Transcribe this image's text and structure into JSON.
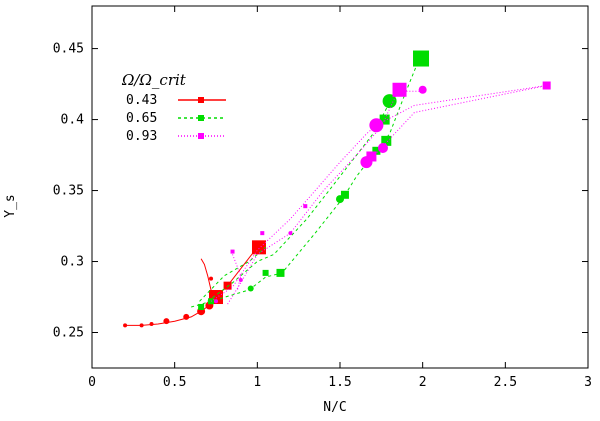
{
  "chart_data": {
    "type": "scatter",
    "xlabel": "N/C",
    "ylabel": "Y_s",
    "xlim": [
      0,
      3
    ],
    "ylim": [
      0.225,
      0.48
    ],
    "x_ticks": [
      {
        "v": 0,
        "label": "0"
      },
      {
        "v": 0.5,
        "label": "0.5"
      },
      {
        "v": 1,
        "label": "1"
      },
      {
        "v": 1.5,
        "label": "1.5"
      },
      {
        "v": 2,
        "label": "2"
      },
      {
        "v": 2.5,
        "label": "2.5"
      },
      {
        "v": 3,
        "label": "3"
      }
    ],
    "y_ticks": [
      {
        "v": 0.25,
        "label": "0.25"
      },
      {
        "v": 0.3,
        "label": "0.3"
      },
      {
        "v": 0.35,
        "label": "0.35"
      },
      {
        "v": 0.4,
        "label": "0.4"
      },
      {
        "v": 0.45,
        "label": "0.45"
      }
    ],
    "grid": false,
    "legend_title": "Ω/Ω_crit",
    "legend_position": "top-left",
    "series": [
      {
        "name": "0.43",
        "color": "#ff0000",
        "dash": "solid",
        "tracks": [
          [
            [
              0.2,
              0.255
            ],
            [
              0.3,
              0.255
            ],
            [
              0.4,
              0.256
            ],
            [
              0.5,
              0.258
            ],
            [
              0.6,
              0.261
            ],
            [
              0.66,
              0.265
            ],
            [
              0.72,
              0.27
            ],
            [
              0.75,
              0.275
            ]
          ],
          [
            [
              0.75,
              0.275
            ],
            [
              0.72,
              0.28
            ],
            [
              0.7,
              0.29
            ],
            [
              0.68,
              0.298
            ],
            [
              0.66,
              0.302
            ]
          ],
          [
            [
              0.75,
              0.275
            ],
            [
              0.82,
              0.283
            ],
            [
              1.0,
              0.31
            ]
          ]
        ],
        "points": [
          {
            "x": 0.2,
            "y": 0.255,
            "s": 2,
            "shape": "circle"
          },
          {
            "x": 0.3,
            "y": 0.255,
            "s": 2,
            "shape": "circle"
          },
          {
            "x": 0.36,
            "y": 0.256,
            "s": 2,
            "shape": "circle"
          },
          {
            "x": 0.45,
            "y": 0.258,
            "s": 3,
            "shape": "circle"
          },
          {
            "x": 0.57,
            "y": 0.261,
            "s": 3,
            "shape": "circle"
          },
          {
            "x": 0.66,
            "y": 0.265,
            "s": 4,
            "shape": "circle"
          },
          {
            "x": 0.71,
            "y": 0.269,
            "s": 4,
            "shape": "circle"
          },
          {
            "x": 0.75,
            "y": 0.275,
            "s": 7,
            "shape": "square"
          },
          {
            "x": 0.72,
            "y": 0.288,
            "s": 2,
            "shape": "circle"
          },
          {
            "x": 0.82,
            "y": 0.283,
            "s": 4,
            "shape": "square"
          },
          {
            "x": 1.01,
            "y": 0.31,
            "s": 7,
            "shape": "square"
          }
        ]
      },
      {
        "name": "0.65",
        "color": "#00dd00",
        "dash": "3,3",
        "tracks": [
          [
            [
              0.6,
              0.268
            ],
            [
              0.72,
              0.272
            ],
            [
              0.95,
              0.28
            ],
            [
              1.05,
              0.289
            ],
            [
              1.15,
              0.292
            ],
            [
              1.35,
              0.32
            ],
            [
              1.52,
              0.345
            ],
            [
              1.6,
              0.36
            ],
            [
              1.7,
              0.375
            ],
            [
              1.8,
              0.39
            ],
            [
              1.9,
              0.42
            ],
            [
              1.98,
              0.443
            ]
          ],
          [
            [
              0.7,
              0.272
            ],
            [
              0.85,
              0.285
            ],
            [
              1.0,
              0.3
            ],
            [
              1.1,
              0.305
            ],
            [
              1.3,
              0.33
            ],
            [
              1.5,
              0.36
            ],
            [
              1.7,
              0.39
            ],
            [
              1.8,
              0.412
            ]
          ],
          [
            [
              0.65,
              0.272
            ],
            [
              0.8,
              0.29
            ],
            [
              0.95,
              0.3
            ],
            [
              1.05,
              0.31
            ]
          ]
        ],
        "points": [
          {
            "x": 0.66,
            "y": 0.268,
            "s": 3,
            "shape": "square"
          },
          {
            "x": 0.72,
            "y": 0.272,
            "s": 3,
            "shape": "square"
          },
          {
            "x": 0.96,
            "y": 0.281,
            "s": 3,
            "shape": "circle"
          },
          {
            "x": 1.05,
            "y": 0.292,
            "s": 3,
            "shape": "square"
          },
          {
            "x": 1.14,
            "y": 0.292,
            "s": 4,
            "shape": "square"
          },
          {
            "x": 1.5,
            "y": 0.344,
            "s": 4,
            "shape": "circle"
          },
          {
            "x": 1.53,
            "y": 0.347,
            "s": 4,
            "shape": "square"
          },
          {
            "x": 1.72,
            "y": 0.378,
            "s": 4,
            "shape": "square"
          },
          {
            "x": 1.78,
            "y": 0.385,
            "s": 5,
            "shape": "square"
          },
          {
            "x": 1.77,
            "y": 0.4,
            "s": 5,
            "shape": "square"
          },
          {
            "x": 1.8,
            "y": 0.413,
            "s": 7,
            "shape": "circle"
          },
          {
            "x": 1.99,
            "y": 0.443,
            "s": 8,
            "shape": "square"
          }
        ]
      },
      {
        "name": "0.93",
        "color": "#ff00ff",
        "dash": "1,2",
        "tracks": [
          [
            [
              0.72,
              0.272
            ],
            [
              0.85,
              0.282
            ],
            [
              1.0,
              0.308
            ],
            [
              1.2,
              0.33
            ],
            [
              1.5,
              0.37
            ],
            [
              1.66,
              0.39
            ],
            [
              1.72,
              0.396
            ],
            [
              1.95,
              0.41
            ],
            [
              2.75,
              0.424
            ]
          ],
          [
            [
              2.75,
              0.424
            ],
            [
              1.95,
              0.405
            ],
            [
              1.75,
              0.38
            ],
            [
              1.68,
              0.372
            ],
            [
              1.66,
              0.37
            ]
          ],
          [
            [
              0.82,
              0.27
            ],
            [
              0.9,
              0.285
            ],
            [
              1.0,
              0.305
            ],
            [
              1.2,
              0.32
            ],
            [
              1.4,
              0.35
            ],
            [
              1.6,
              0.375
            ],
            [
              1.75,
              0.395
            ],
            [
              1.85,
              0.42
            ],
            [
              2.0,
              0.42
            ]
          ],
          [
            [
              0.85,
              0.305
            ],
            [
              0.9,
              0.29
            ],
            [
              0.88,
              0.28
            ]
          ]
        ],
        "points": [
          {
            "x": 0.75,
            "y": 0.272,
            "s": 2,
            "shape": "circle"
          },
          {
            "x": 0.85,
            "y": 0.307,
            "s": 2,
            "shape": "square"
          },
          {
            "x": 0.9,
            "y": 0.287,
            "s": 2,
            "shape": "circle"
          },
          {
            "x": 1.03,
            "y": 0.32,
            "s": 2,
            "shape": "square"
          },
          {
            "x": 1.2,
            "y": 0.32,
            "s": 2,
            "shape": "circle"
          },
          {
            "x": 1.29,
            "y": 0.339,
            "s": 2,
            "shape": "square"
          },
          {
            "x": 1.66,
            "y": 0.37,
            "s": 6,
            "shape": "circle"
          },
          {
            "x": 1.69,
            "y": 0.374,
            "s": 5,
            "shape": "square"
          },
          {
            "x": 1.76,
            "y": 0.38,
            "s": 5,
            "shape": "circle"
          },
          {
            "x": 1.72,
            "y": 0.396,
            "s": 7,
            "shape": "circle"
          },
          {
            "x": 1.86,
            "y": 0.421,
            "s": 7,
            "shape": "square"
          },
          {
            "x": 2.0,
            "y": 0.421,
            "s": 4,
            "shape": "circle"
          },
          {
            "x": 2.75,
            "y": 0.424,
            "s": 4,
            "shape": "square"
          }
        ]
      }
    ]
  }
}
